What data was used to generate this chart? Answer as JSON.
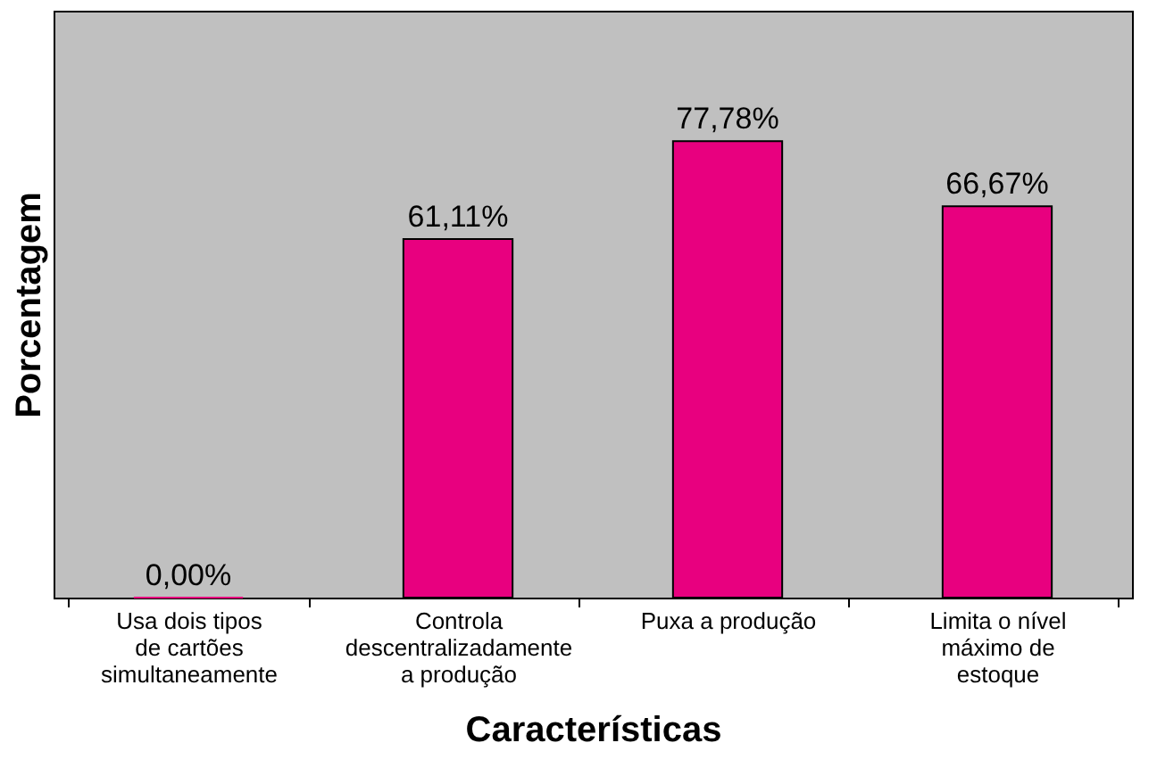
{
  "chart_data": {
    "type": "bar",
    "xlabel": "Características",
    "ylabel": "Porcentagem",
    "categories": [
      "Usa dois tipos de cartões simultaneamente",
      "Controla descentralizadamente a produção",
      "Puxa a produção",
      "Limita o nível máximo de estoque"
    ],
    "values": [
      0,
      61.11,
      77.78,
      66.67
    ],
    "value_labels": [
      "0,00%",
      "61,11%",
      "77,78%",
      "66,67%"
    ],
    "color": "#e8007f",
    "ylim": [
      0,
      100
    ],
    "tick_labels": "x",
    "grid": false
  }
}
